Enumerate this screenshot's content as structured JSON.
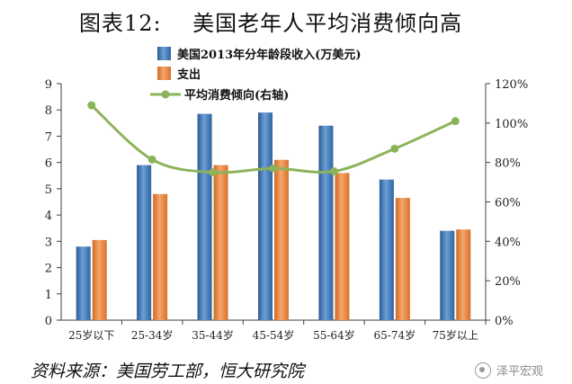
{
  "header": {
    "title": "图表12:    美国老年人平均消费倾向高"
  },
  "footer": {
    "source": "资料来源：美国劳工部，恒大研究院",
    "watermark": "泽平宏观"
  },
  "colors": {
    "income": "#3a72b0",
    "spending": "#e8803a",
    "propensity": "#8db35a",
    "axis": "#404040"
  },
  "chart_data": {
    "type": "bar",
    "categories": [
      "25岁以下",
      "25-34岁",
      "35-44岁",
      "45-54岁",
      "55-64岁",
      "65-74岁",
      "75岁以上"
    ],
    "series": [
      {
        "name": "美国2013年分年龄段收入(万美元)",
        "type": "bar",
        "axis": "left",
        "values": [
          2.8,
          5.9,
          7.85,
          7.9,
          7.4,
          5.35,
          3.4
        ]
      },
      {
        "name": "支出",
        "type": "bar",
        "axis": "left",
        "values": [
          3.05,
          4.8,
          5.9,
          6.1,
          5.6,
          4.65,
          3.45
        ]
      },
      {
        "name": "平均消费倾向(右轴)",
        "type": "line",
        "axis": "right",
        "values": [
          109,
          81.5,
          75,
          77,
          75.5,
          87,
          101
        ]
      }
    ],
    "ylim": [
      0,
      9
    ],
    "y_ticks": [
      "0",
      "1",
      "2",
      "3",
      "4",
      "5",
      "6",
      "7",
      "8",
      "9"
    ],
    "y2lim": [
      0,
      120
    ],
    "y2_ticks": [
      "0%",
      "20%",
      "40%",
      "60%",
      "80%",
      "100%",
      "120%"
    ],
    "legend_position": "top-left",
    "grid": false
  }
}
